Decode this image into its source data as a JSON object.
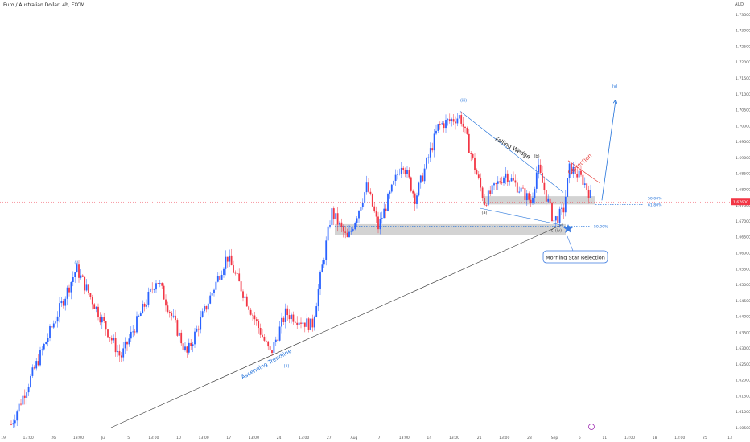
{
  "header": {
    "title": "Euro / Australian Dollar, 4h, FXCM",
    "currency": "AUD"
  },
  "price_tag": "1.67600",
  "x_labels": [
    "19",
    "13:00",
    "26",
    "13:00",
    "Jul",
    "5",
    "13:00",
    "10",
    "13:00",
    "17",
    "13:00",
    "24",
    "13:00",
    "27",
    "Aug",
    "7",
    "13:00",
    "14",
    "13:00",
    "21",
    "13:00",
    "28",
    "Sep",
    "6",
    "11",
    "13:00",
    "18",
    "13:00",
    "25",
    "13"
  ],
  "y_labels": [
    "1.73500",
    "1.73000",
    "1.72500",
    "1.72000",
    "1.71500",
    "1.71000",
    "1.70500",
    "1.70000",
    "1.69500",
    "1.69000",
    "1.68500",
    "1.68000",
    "1.67500",
    "1.67000",
    "1.66500",
    "1.66000",
    "1.65500",
    "1.65000",
    "1.64500",
    "1.64000",
    "1.63500",
    "1.63000",
    "1.62500",
    "1.62000",
    "1.61500",
    "1.61000",
    "1.60500"
  ],
  "annotations": {
    "wave_i": "(i)",
    "wave_ii": "(ii)",
    "wave_iii": "(iii)",
    "wave_iv": "(iv)",
    "wave_v": "(v)",
    "wave_a": "(a)",
    "wave_b": "(b)",
    "wave_c": "(c)",
    "falling_wedge": "Falling Wedge",
    "correction": "Correction",
    "ascending_trendline": "Ascending Trendline",
    "morning_star": "Morning Star Rejection",
    "fib_50_upper": "50.00%",
    "fib_618": "61.80%",
    "fib_50_lower": "50.00%"
  },
  "colors": {
    "bull": "#2962ff",
    "bear": "#f23645",
    "annotation_blue": "#1e6fd9",
    "correction_red": "#e53935",
    "zone": "#c8c8c8"
  },
  "chart_data": {
    "type": "candlestick",
    "title": "Euro / Australian Dollar, 4h, FXCM",
    "ylim": [
      1.605,
      1.737
    ],
    "y_scale": "linear",
    "grid": false,
    "key_levels": [
      {
        "label": "50.00%",
        "value": 1.6772
      },
      {
        "label": "61.80%",
        "value": 1.6752
      },
      {
        "label": "50.00%",
        "value": 1.6684
      },
      {
        "label": "current",
        "value": 1.676
      }
    ],
    "waves": [
      {
        "label": "(i)",
        "value": 1.655
      },
      {
        "label": "(ii)",
        "value": 1.628
      },
      {
        "label": "(iii)",
        "value": 1.7075
      },
      {
        "label": "(a)",
        "value": 1.676
      },
      {
        "label": "(b)",
        "value": 1.687
      },
      {
        "label": "(c)",
        "value": 1.6705
      },
      {
        "label": "(iv)",
        "value": 1.6705
      },
      {
        "label": "(v)",
        "value": 1.711
      }
    ]
  }
}
